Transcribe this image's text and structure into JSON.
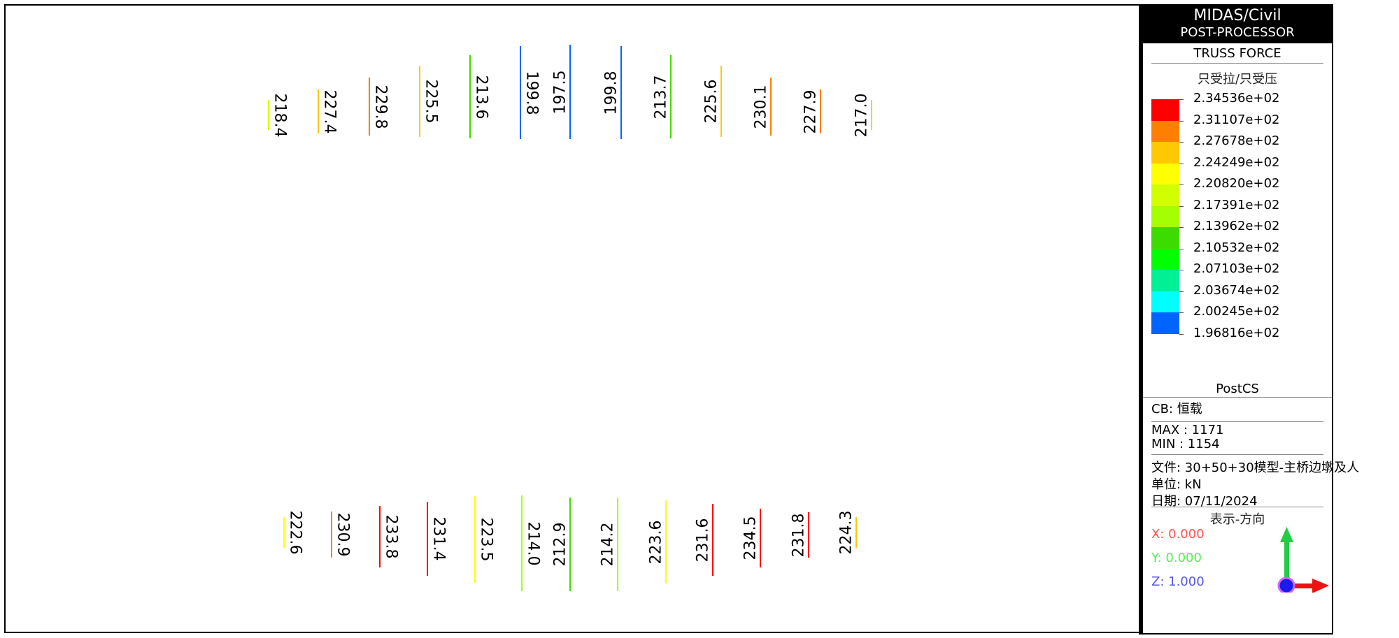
{
  "panel": {
    "title": "MIDAS/Civil",
    "subtitle": "POST-PROCESSOR",
    "result_type": "TRUSS FORCE",
    "filter": "只受拉/只受压",
    "legend_values": [
      "2.34536e+02",
      "2.31107e+02",
      "2.27678e+02",
      "2.24249e+02",
      "2.20820e+02",
      "2.17391e+02",
      "2.13962e+02",
      "2.10532e+02",
      "2.07103e+02",
      "2.03674e+02",
      "2.00245e+02",
      "1.96816e+02"
    ],
    "legend_colors": [
      "#ff0000",
      "#ff7f00",
      "#ffc800",
      "#ffff00",
      "#d2ff00",
      "#a5ff00",
      "#3cdc00",
      "#00ff00",
      "#00f096",
      "#00ffff",
      "#0064ff"
    ],
    "stage": "PostCS",
    "cb": "CB: 恒载",
    "max": "MAX : 1171",
    "min": "MIN : 1154",
    "file": "文件: 30+50+30模型-主桥边墩及人",
    "unit": "单位: kN",
    "date": "日期: 07/11/2024",
    "view_direction": "表示-方向",
    "x": "X: 0.000",
    "y": "Y: 0.000",
    "z": "Z: 1.000",
    "x_color": "#ff5555",
    "y_color": "#55ee55",
    "z_color": "#5555ee"
  },
  "members_top": [
    "218.4",
    "227.4",
    "229.8",
    "225.5",
    "213.6",
    "199.8",
    "197.5",
    "199.8",
    "213.7",
    "225.6",
    "230.1",
    "227.9",
    "217.0"
  ],
  "members_bottom": [
    "222.6",
    "230.9",
    "233.8",
    "231.4",
    "223.5",
    "214.0",
    "212.9",
    "214.2",
    "223.6",
    "231.6",
    "234.5",
    "231.8",
    "224.3"
  ]
}
